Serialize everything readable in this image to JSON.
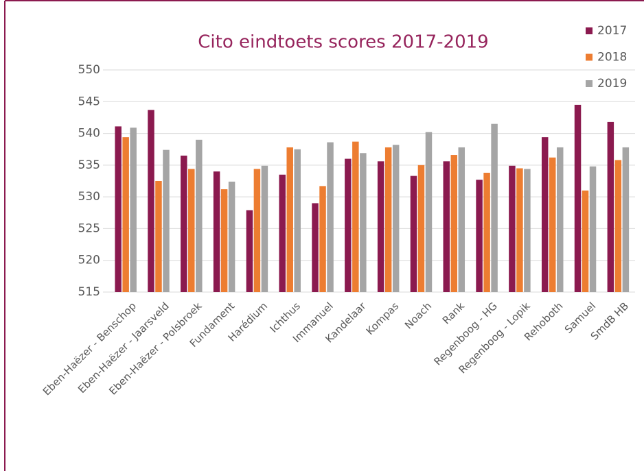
{
  "chart_data": {
    "type": "bar",
    "title": "Cito eindtoets scores 2017-2019",
    "categories": [
      "Eben-Haëzer - Benschop",
      "Eben-Haëzer - Jaarsveld",
      "Eben-Haëzer - Polsbroek",
      "Fundament",
      "Harédium",
      "Ichthus",
      "Immanuel",
      "Kandelaar",
      "Kompas",
      "Noach",
      "Rank",
      "Regenboog - HG",
      "Regenboog - Lopik",
      "Rehoboth",
      "Samuel",
      "SmdB HB"
    ],
    "series": [
      {
        "name": "2017",
        "color": "#8b1a4f",
        "values": [
          541.1,
          543.7,
          536.5,
          534,
          527.9,
          533.5,
          529,
          536,
          535.6,
          533.3,
          535.6,
          532.7,
          534.9,
          539.4,
          544.5,
          541.8
        ]
      },
      {
        "name": "2018",
        "color": "#ed7d31",
        "values": [
          539.4,
          532.5,
          534.4,
          531.2,
          534.4,
          537.8,
          531.7,
          538.7,
          537.8,
          535,
          536.6,
          533.8,
          534.5,
          536.2,
          531,
          535.8
        ]
      },
      {
        "name": "2019",
        "color": "#a5a5a5",
        "values": [
          540.9,
          537.4,
          539,
          532.4,
          534.9,
          537.5,
          538.6,
          536.9,
          538.2,
          540.2,
          537.8,
          541.5,
          534.4,
          537.8,
          534.8,
          537.8
        ]
      }
    ],
    "ylim": [
      515,
      550
    ],
    "yticks": [
      515,
      520,
      525,
      530,
      535,
      540,
      545,
      550
    ],
    "grid": true,
    "legend": "top-right"
  }
}
